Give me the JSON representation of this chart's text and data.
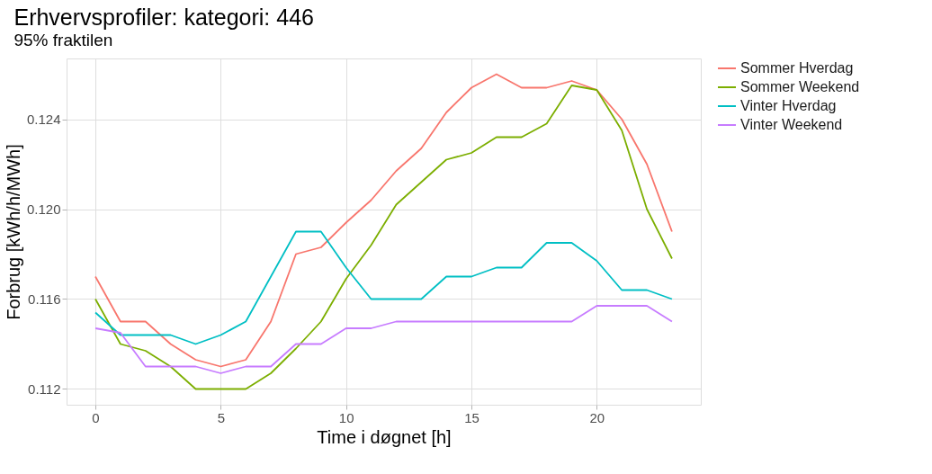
{
  "chart_data": {
    "type": "line",
    "title": "Erhvervsprofiler: kategori: 446",
    "subtitle": "95% fraktilen",
    "xlabel": "Time i døgnet [h]",
    "ylabel": "Forbrug [kWh/h/MWh]",
    "x": [
      0,
      1,
      2,
      3,
      4,
      5,
      6,
      7,
      8,
      9,
      10,
      11,
      12,
      13,
      14,
      15,
      16,
      17,
      18,
      19,
      20,
      21,
      22,
      23
    ],
    "series": [
      {
        "name": "Sommer Hverdag",
        "color": "#f8766d",
        "values": [
          0.117,
          0.115,
          0.115,
          0.114,
          0.1133,
          0.113,
          0.1133,
          0.115,
          0.118,
          0.1183,
          0.1194,
          0.1204,
          0.1217,
          0.1227,
          0.1243,
          0.1254,
          0.126,
          0.1254,
          0.1254,
          0.1257,
          0.1253,
          0.124,
          0.122,
          0.119
        ]
      },
      {
        "name": "Sommer Weekend",
        "color": "#7cae00",
        "values": [
          0.116,
          0.114,
          0.1137,
          0.113,
          0.112,
          0.112,
          0.112,
          0.1127,
          0.1138,
          0.115,
          0.1169,
          0.1184,
          0.1202,
          0.1212,
          0.1222,
          0.1225,
          0.1232,
          0.1232,
          0.1238,
          0.1255,
          0.1253,
          0.1235,
          0.12,
          0.1178
        ]
      },
      {
        "name": "Vinter Hverdag",
        "color": "#00bfc4",
        "values": [
          0.1154,
          0.1144,
          0.1144,
          0.1144,
          0.114,
          0.1144,
          0.115,
          0.117,
          0.119,
          0.119,
          0.1174,
          0.116,
          0.116,
          0.116,
          0.117,
          0.117,
          0.1174,
          0.1174,
          0.1185,
          0.1185,
          0.1177,
          0.1164,
          0.1164,
          0.116
        ]
      },
      {
        "name": "Vinter Weekend",
        "color": "#c77cff",
        "values": [
          0.1147,
          0.1145,
          0.113,
          0.113,
          0.113,
          0.1127,
          0.113,
          0.113,
          0.114,
          0.114,
          0.1147,
          0.1147,
          0.115,
          0.115,
          0.115,
          0.115,
          0.115,
          0.115,
          0.115,
          0.115,
          0.1157,
          0.1157,
          0.1157,
          0.115
        ]
      }
    ],
    "xlim": [
      -1.15,
      24.15
    ],
    "ylim": [
      0.1113,
      0.1267
    ],
    "xticks": [
      0,
      5,
      10,
      15,
      20
    ],
    "yticks": [
      {
        "value": 0.112,
        "label": "0.112"
      },
      {
        "value": 0.116,
        "label": "0.116"
      },
      {
        "value": 0.12,
        "label": "0.120"
      },
      {
        "value": 0.124,
        "label": "0.124"
      }
    ],
    "grid": true,
    "legend": "right",
    "marker": "none",
    "line_style": "solid"
  }
}
